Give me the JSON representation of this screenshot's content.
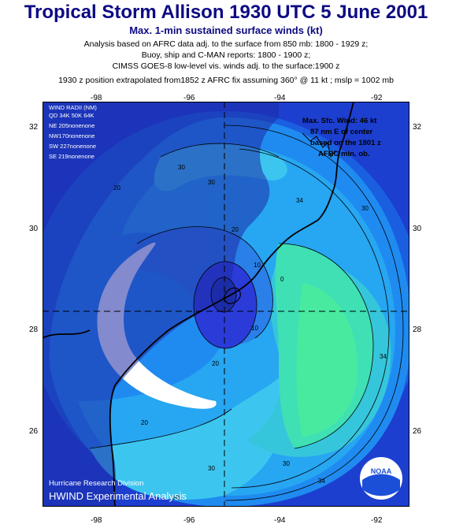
{
  "header": {
    "title": "Tropical Storm Allison 1930 UTC 5 June 2001",
    "subtitle": "Max. 1-min sustained surface winds (kt)",
    "lines": [
      "Analysis based on AFRC data adj. to the surface from 850 mb: 1800 - 1929 z;",
      "Buoy, ship and C-MAN reports: 1800 - 1900 z;",
      "CIMSS GOES-8 low-level vis. winds adj. to the surface:1900 z",
      "1930 z position extrapolated from1852 z AFRC fix assuming 360° @ 11 kt ; mslp = 1002 mb"
    ]
  },
  "axes": {
    "top_lon": [
      "-98",
      "-96",
      "-94",
      "-92"
    ],
    "bottom_lon": [
      "-98",
      "-96",
      "-94",
      "-92"
    ],
    "left_lat": [
      "32",
      "30",
      "28",
      "26"
    ],
    "right_lat": [
      "32",
      "30",
      "28",
      "26"
    ]
  },
  "wind_radii": {
    "title": "WIND RADII (NM)",
    "header": "QD 34K 50K 64K",
    "rows": [
      "NE 205nonenone",
      "NW170nonenone",
      "SW 227nonenone",
      "SE 219nonenone"
    ]
  },
  "max_wind": [
    "Max. Sfc. Wind: 46 kt",
    "87 nm E of center",
    "based on the 1801 z",
    "AFRC min. ob."
  ],
  "contour_labels": [
    "34",
    "34",
    "34",
    "30",
    "30",
    "30",
    "30",
    "20",
    "20",
    "20",
    "20",
    "10",
    "10",
    "0",
    "30",
    "30"
  ],
  "footer": {
    "division": "Hurricane Research Division",
    "product": "HWIND Experimental Analysis",
    "logo_text": "NOAA"
  },
  "colors": {
    "title": "#0d0a82",
    "outer": "#1c3fd0",
    "mid": "#1f8bf0",
    "inner": "#3cc6ef",
    "green": "#3fe8a8",
    "core": "#2a3bd8",
    "land": "#1e2ba6"
  }
}
